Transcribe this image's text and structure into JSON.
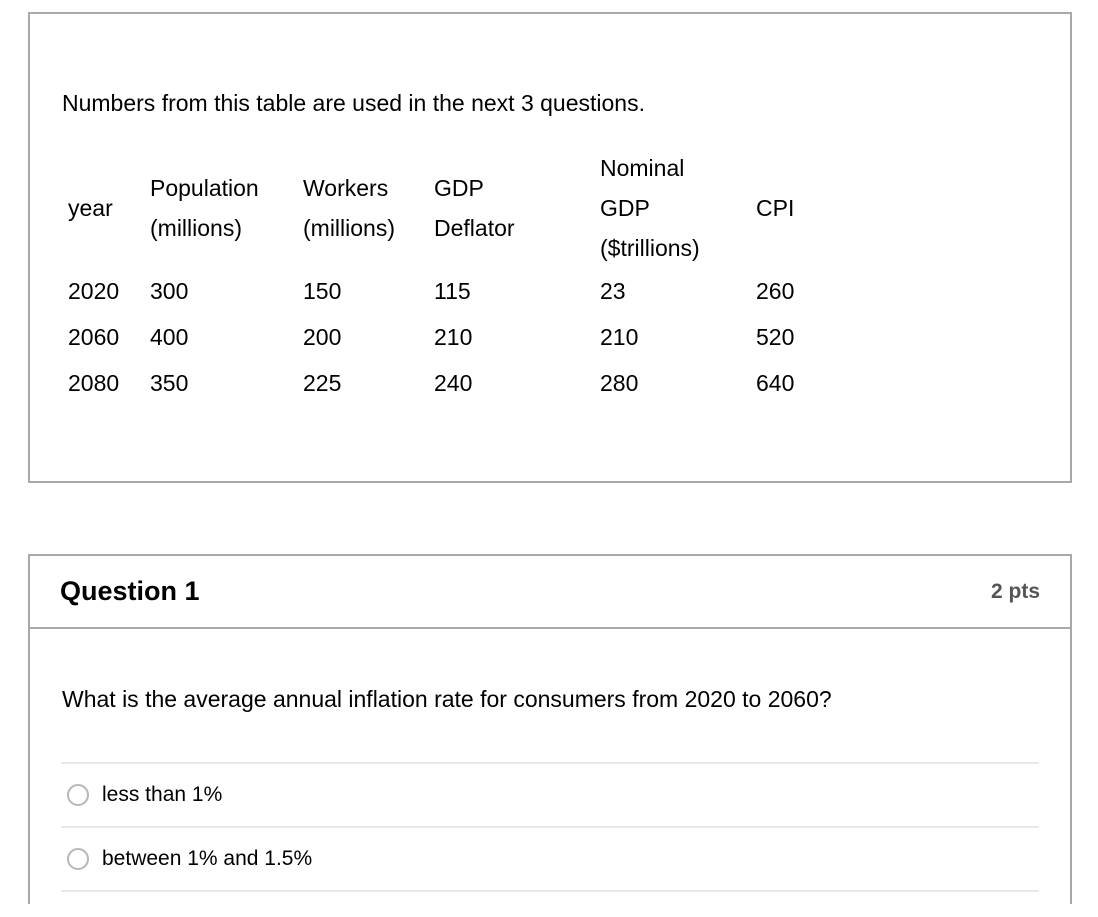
{
  "colors": {
    "card_border": "#a9a9a9",
    "option_divider": "#e8e8e8",
    "points_text": "#555555",
    "radio_border": "#b7b7b7",
    "text": "#000000"
  },
  "description_card": {
    "intro": "Numbers from this table are used in the next 3 questions.",
    "table": {
      "headers": [
        "year",
        "Population\n(millions)",
        "Workers\n(millions)",
        "GDP\nDeflator",
        "Nominal\nGDP\n($trillions)",
        "CPI"
      ],
      "rows": [
        [
          "2020",
          "300",
          "150",
          "115",
          "23",
          "260"
        ],
        [
          "2060",
          "400",
          "200",
          "210",
          "210",
          "520"
        ],
        [
          "2080",
          "350",
          "225",
          "240",
          "280",
          "640"
        ]
      ]
    }
  },
  "question": {
    "title": "Question 1",
    "points": "2 pts",
    "prompt": "What is the average annual inflation rate for consumers from 2020 to 2060?",
    "options": [
      {
        "label": "less than 1%"
      },
      {
        "label": "between 1% and 1.5%"
      }
    ]
  }
}
